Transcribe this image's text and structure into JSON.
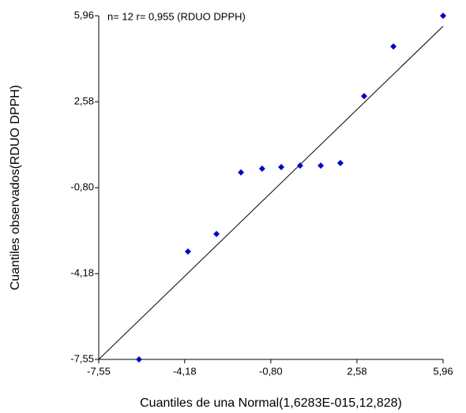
{
  "chart_data": {
    "type": "scatter",
    "annotation": "n= 12 r= 0,955 (RDUO DPPH)",
    "x_label": "Cuantiles de una Normal(1,6283E-015,12,828)",
    "y_label": "Cuantiles observados(RDUO DPPH)",
    "series": [
      {
        "name": "RDUO DPPH",
        "color": "#0000cc",
        "x": [
          -5.97,
          -4.05,
          -2.93,
          -1.97,
          -1.14,
          -0.39,
          0.35,
          1.16,
          1.93,
          2.86,
          4.01,
          5.96
        ],
        "values": [
          -7.55,
          -3.31,
          -2.62,
          -0.2,
          -0.05,
          0.01,
          0.07,
          0.07,
          0.17,
          2.8,
          4.75,
          5.96
        ]
      }
    ],
    "reference_line": {
      "x": [
        -7.55,
        5.96
      ],
      "values": [
        -7.55,
        5.55
      ]
    },
    "xlim": [
      -7.55,
      5.96
    ],
    "ylim": [
      -7.55,
      5.96
    ],
    "xticks": [
      {
        "value": -7.55,
        "label": "-7,55"
      },
      {
        "value": -4.18,
        "label": "-4,18"
      },
      {
        "value": -0.8,
        "label": "-0,80"
      },
      {
        "value": 2.58,
        "label": "2,58"
      },
      {
        "value": 5.96,
        "label": "5,96"
      }
    ],
    "yticks": [
      {
        "value": -7.55,
        "label": "-7,55"
      },
      {
        "value": -4.18,
        "label": "-4,18"
      },
      {
        "value": -0.8,
        "label": "-0,80"
      },
      {
        "value": 2.58,
        "label": "2,58"
      },
      {
        "value": 5.96,
        "label": "5,96"
      }
    ]
  }
}
